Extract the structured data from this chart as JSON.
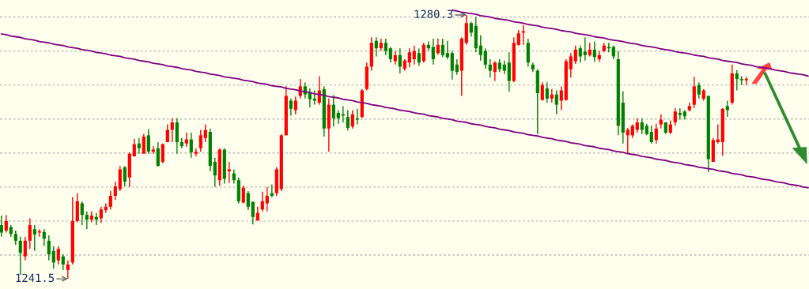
{
  "chart_data": {
    "type": "candlestick",
    "categories": [
      null,
      null,
      null,
      null,
      null,
      null,
      null,
      null,
      null,
      null,
      null,
      null,
      null,
      null,
      null,
      null,
      null,
      null,
      null,
      null,
      null,
      null,
      null,
      null,
      null,
      null,
      null,
      null,
      null,
      null,
      null,
      null,
      null,
      null,
      null,
      null,
      null,
      null,
      null,
      null,
      null,
      null,
      null,
      null,
      null,
      null,
      null,
      null,
      null,
      null,
      null,
      null,
      null,
      null,
      null,
      null,
      null,
      null,
      null,
      null,
      null,
      null,
      null,
      null,
      null,
      null,
      null,
      null,
      null,
      null,
      null,
      null,
      null,
      null,
      null,
      null,
      null,
      null,
      null,
      null,
      null,
      null,
      null,
      null,
      null,
      null,
      null,
      null,
      null,
      null,
      null,
      null,
      null,
      null,
      null,
      null,
      null,
      null,
      null,
      null,
      null,
      null,
      null,
      null,
      null,
      null,
      null,
      null,
      null,
      null,
      null,
      null,
      null,
      null,
      null,
      null,
      null,
      null,
      null,
      null,
      null,
      null,
      null,
      null,
      null,
      null,
      null,
      null,
      null,
      null,
      null,
      null,
      null,
      null,
      null,
      null,
      null,
      null,
      null,
      null,
      null,
      null,
      null,
      null,
      null,
      null,
      null,
      null,
      null,
      null,
      null,
      null,
      null,
      null,
      null,
      null,
      null,
      null,
      null,
      null,
      null,
      null,
      null,
      null,
      null,
      null,
      null,
      null,
      null,
      null,
      null
    ],
    "ohlc": [
      [
        1249.4,
        1250.8,
        1247.7,
        1248.3
      ],
      [
        1248.6,
        1250.9,
        1248.3,
        1250.0
      ],
      [
        1249.1,
        1249.4,
        1247.7,
        1248.1
      ],
      [
        1248.1,
        1248.6,
        1246.5,
        1247.1
      ],
      [
        1247.1,
        1247.7,
        1242.1,
        1245.3
      ],
      [
        1244.8,
        1247.7,
        1244.2,
        1247.1
      ],
      [
        1247.1,
        1250.4,
        1245.9,
        1249.4
      ],
      [
        1248.8,
        1249.4,
        1245.6,
        1248.0
      ],
      [
        1248.3,
        1248.8,
        1247.7,
        1248.5
      ],
      [
        1248.4,
        1248.8,
        1246.3,
        1247.4
      ],
      [
        1247.1,
        1247.9,
        1244.2,
        1245.1
      ],
      [
        1245.6,
        1246.3,
        1243.0,
        1243.9
      ],
      [
        1244.2,
        1246.3,
        1243.6,
        1245.9
      ],
      [
        1244.8,
        1245.1,
        1242.8,
        1243.6
      ],
      [
        1242.8,
        1244.2,
        1241.5,
        1243.6
      ],
      [
        1243.9,
        1253.5,
        1243.6,
        1250.0
      ],
      [
        1250.0,
        1254.1,
        1249.8,
        1252.9
      ],
      [
        1252.6,
        1252.9,
        1249.4,
        1250.9
      ],
      [
        1250.9,
        1251.4,
        1248.8,
        1250.2
      ],
      [
        1250.2,
        1251.4,
        1249.8,
        1250.8
      ],
      [
        1250.6,
        1251.2,
        1249.4,
        1250.2
      ],
      [
        1250.4,
        1252.1,
        1249.7,
        1251.7
      ],
      [
        1251.6,
        1252.6,
        1251.2,
        1252.1
      ],
      [
        1252.1,
        1254.4,
        1251.7,
        1253.7
      ],
      [
        1253.7,
        1255.8,
        1253.1,
        1255.1
      ],
      [
        1254.7,
        1258.1,
        1254.4,
        1257.6
      ],
      [
        1257.9,
        1258.1,
        1255.1,
        1255.8
      ],
      [
        1256.4,
        1260.1,
        1255.0,
        1259.9
      ],
      [
        1259.5,
        1262.1,
        1259.5,
        1261.3
      ],
      [
        1261.4,
        1262.2,
        1259.9,
        1260.7
      ],
      [
        1259.9,
        1262.8,
        1259.9,
        1262.4
      ],
      [
        1262.6,
        1263.5,
        1259.9,
        1260.2
      ],
      [
        1260.2,
        1261.0,
        1259.9,
        1260.5
      ],
      [
        1260.7,
        1261.6,
        1258.0,
        1258.1
      ],
      [
        1258.7,
        1261.4,
        1258.5,
        1261.3
      ],
      [
        1261.6,
        1264.2,
        1261.6,
        1263.4
      ],
      [
        1263.4,
        1265.1,
        1261.6,
        1264.5
      ],
      [
        1264.5,
        1265.1,
        1259.9,
        1261.6
      ],
      [
        1261.6,
        1262.2,
        1260.7,
        1261.0
      ],
      [
        1261.4,
        1263.0,
        1260.9,
        1262.0
      ],
      [
        1262.0,
        1263.0,
        1259.3,
        1260.1
      ],
      [
        1259.9,
        1260.7,
        1259.5,
        1260.2
      ],
      [
        1260.7,
        1263.4,
        1260.2,
        1262.6
      ],
      [
        1262.2,
        1264.2,
        1261.6,
        1263.4
      ],
      [
        1263.1,
        1263.6,
        1257.3,
        1258.1
      ],
      [
        1258.7,
        1259.3,
        1255.0,
        1256.7
      ],
      [
        1256.0,
        1260.7,
        1255.2,
        1260.5
      ],
      [
        1260.5,
        1260.7,
        1255.5,
        1256.2
      ],
      [
        1257.3,
        1258.7,
        1255.6,
        1257.6
      ],
      [
        1257.0,
        1257.6,
        1255.5,
        1256.0
      ],
      [
        1256.0,
        1256.4,
        1252.6,
        1252.9
      ],
      [
        1252.7,
        1255.2,
        1252.6,
        1254.9
      ],
      [
        1254.1,
        1254.4,
        1251.6,
        1252.1
      ],
      [
        1252.8,
        1252.9,
        1249.5,
        1250.6
      ],
      [
        1250.1,
        1252.1,
        1250.0,
        1251.2
      ],
      [
        1251.7,
        1254.3,
        1251.4,
        1252.9
      ],
      [
        1252.6,
        1255.0,
        1251.4,
        1253.7
      ],
      [
        1254.1,
        1255.4,
        1253.5,
        1253.7
      ],
      [
        1254.1,
        1257.9,
        1253.7,
        1257.6
      ],
      [
        1254.7,
        1262.8,
        1254.4,
        1262.6
      ],
      [
        1262.6,
        1269.8,
        1262.6,
        1268.4
      ],
      [
        1267.7,
        1268.0,
        1265.5,
        1266.5
      ],
      [
        1266.3,
        1268.3,
        1265.7,
        1267.7
      ],
      [
        1268.4,
        1270.9,
        1268.0,
        1269.8
      ],
      [
        1269.8,
        1270.4,
        1268.0,
        1268.6
      ],
      [
        1268.8,
        1269.5,
        1266.7,
        1267.9
      ],
      [
        1268.0,
        1269.2,
        1267.1,
        1267.7
      ],
      [
        1267.4,
        1271.3,
        1267.1,
        1269.2
      ],
      [
        1269.4,
        1269.8,
        1262.4,
        1263.6
      ],
      [
        1263.6,
        1268.0,
        1260.2,
        1267.1
      ],
      [
        1267.1,
        1268.5,
        1263.9,
        1265.1
      ],
      [
        1265.9,
        1266.3,
        1264.3,
        1265.1
      ],
      [
        1265.7,
        1266.9,
        1264.5,
        1265.5
      ],
      [
        1265.3,
        1266.3,
        1263.3,
        1263.7
      ],
      [
        1263.9,
        1266.3,
        1263.6,
        1265.7
      ],
      [
        1265.1,
        1266.5,
        1264.2,
        1264.9
      ],
      [
        1265.3,
        1269.4,
        1265.1,
        1269.2
      ],
      [
        1269.4,
        1273.3,
        1269.2,
        1272.7
      ],
      [
        1272.7,
        1277.0,
        1272.1,
        1276.2
      ],
      [
        1276.5,
        1277.0,
        1274.2,
        1275.4
      ],
      [
        1275.4,
        1276.8,
        1275.0,
        1276.2
      ],
      [
        1276.2,
        1276.8,
        1274.4,
        1275.0
      ],
      [
        1275.4,
        1275.6,
        1273.3,
        1273.8
      ],
      [
        1273.5,
        1275.0,
        1273.0,
        1274.4
      ],
      [
        1274.4,
        1275.4,
        1271.7,
        1272.7
      ],
      [
        1272.4,
        1273.8,
        1272.1,
        1273.6
      ],
      [
        1273.3,
        1275.4,
        1272.6,
        1274.8
      ],
      [
        1273.8,
        1275.8,
        1273.0,
        1275.0
      ],
      [
        1274.7,
        1275.4,
        1272.8,
        1273.3
      ],
      [
        1273.5,
        1276.2,
        1273.3,
        1275.9
      ],
      [
        1275.9,
        1276.4,
        1275.0,
        1275.4
      ],
      [
        1275.6,
        1276.8,
        1273.0,
        1273.8
      ],
      [
        1274.7,
        1276.8,
        1274.4,
        1275.9
      ],
      [
        1275.9,
        1276.8,
        1274.1,
        1274.4
      ],
      [
        1274.7,
        1276.5,
        1273.8,
        1274.1
      ],
      [
        1274.7,
        1275.0,
        1270.8,
        1272.1
      ],
      [
        1273.0,
        1273.8,
        1271.5,
        1271.9
      ],
      [
        1272.1,
        1277.0,
        1268.4,
        1276.8
      ],
      [
        1276.2,
        1280.3,
        1275.9,
        1279.1
      ],
      [
        1279.1,
        1279.3,
        1277.1,
        1277.7
      ],
      [
        1278.7,
        1280.0,
        1274.8,
        1275.4
      ],
      [
        1275.8,
        1277.3,
        1273.6,
        1274.4
      ],
      [
        1275.0,
        1275.4,
        1272.4,
        1273.0
      ],
      [
        1273.0,
        1273.8,
        1271.1,
        1272.1
      ],
      [
        1271.9,
        1273.5,
        1270.6,
        1273.3
      ],
      [
        1273.3,
        1273.8,
        1271.9,
        1272.3
      ],
      [
        1273.0,
        1273.6,
        1271.6,
        1272.1
      ],
      [
        1273.3,
        1274.8,
        1269.0,
        1270.6
      ],
      [
        1270.6,
        1277.0,
        1270.4,
        1276.2
      ],
      [
        1275.9,
        1278.1,
        1275.8,
        1277.6
      ],
      [
        1277.7,
        1278.8,
        1275.9,
        1277.9
      ],
      [
        1276.2,
        1276.8,
        1272.7,
        1273.3
      ],
      [
        1273.0,
        1273.3,
        1271.9,
        1272.3
      ],
      [
        1272.1,
        1272.3,
        1262.8,
        1268.8
      ],
      [
        1267.8,
        1270.4,
        1267.7,
        1270.0
      ],
      [
        1269.5,
        1270.4,
        1267.4,
        1268.0
      ],
      [
        1268.0,
        1269.4,
        1267.4,
        1268.6
      ],
      [
        1268.6,
        1269.2,
        1265.7,
        1267.1
      ],
      [
        1267.7,
        1269.8,
        1266.3,
        1269.2
      ],
      [
        1267.8,
        1273.8,
        1267.7,
        1273.5
      ],
      [
        1272.3,
        1274.7,
        1271.1,
        1274.2
      ],
      [
        1273.5,
        1275.8,
        1273.1,
        1275.2
      ],
      [
        1275.4,
        1275.8,
        1273.3,
        1274.2
      ],
      [
        1274.9,
        1277.0,
        1273.6,
        1274.4
      ],
      [
        1274.4,
        1276.2,
        1274.2,
        1275.2
      ],
      [
        1275.2,
        1276.4,
        1273.4,
        1274.1
      ],
      [
        1273.8,
        1275.0,
        1273.4,
        1274.4
      ],
      [
        1275.0,
        1276.2,
        1274.8,
        1275.8
      ],
      [
        1275.6,
        1276.2,
        1274.8,
        1275.4
      ],
      [
        1275.6,
        1275.8,
        1273.8,
        1274.2
      ],
      [
        1273.8,
        1275.0,
        1262.6,
        1264.0
      ],
      [
        1267.4,
        1269.1,
        1261.4,
        1263.0
      ],
      [
        1262.6,
        1263.7,
        1259.9,
        1263.4
      ],
      [
        1262.6,
        1264.2,
        1262.2,
        1264.0
      ],
      [
        1263.4,
        1265.1,
        1263.0,
        1264.5
      ],
      [
        1264.5,
        1265.1,
        1262.8,
        1263.4
      ],
      [
        1264.0,
        1264.3,
        1262.6,
        1262.8
      ],
      [
        1263.1,
        1264.0,
        1261.4,
        1261.6
      ],
      [
        1261.9,
        1264.3,
        1261.4,
        1263.6
      ],
      [
        1264.2,
        1265.7,
        1263.6,
        1264.9
      ],
      [
        1264.5,
        1264.5,
        1262.8,
        1263.0
      ],
      [
        1263.0,
        1264.8,
        1262.8,
        1264.2
      ],
      [
        1264.5,
        1266.6,
        1264.0,
        1266.1
      ],
      [
        1265.9,
        1266.6,
        1264.9,
        1265.6
      ],
      [
        1266.1,
        1266.3,
        1264.9,
        1265.4
      ],
      [
        1266.3,
        1267.4,
        1266.1,
        1266.9
      ],
      [
        1267.1,
        1271.2,
        1266.6,
        1269.8
      ],
      [
        1270.0,
        1270.4,
        1268.0,
        1268.6
      ],
      [
        1268.0,
        1269.4,
        1267.7,
        1269.2
      ],
      [
        1268.4,
        1268.4,
        1257.2,
        1259.1
      ],
      [
        1258.7,
        1262.2,
        1258.7,
        1261.9
      ],
      [
        1261.6,
        1264.2,
        1261.4,
        1262.0
      ],
      [
        1261.6,
        1266.6,
        1259.6,
        1266.5
      ],
      [
        1266.9,
        1267.7,
        1265.3,
        1266.3
      ],
      [
        1267.4,
        1273.0,
        1267.1,
        1271.7
      ],
      [
        1271.7,
        1272.2,
        1269.2,
        1270.9
      ],
      [
        1270.9,
        1271.3,
        1270.0,
        1270.7
      ],
      [
        1270.7,
        1271.2,
        1270.0,
        1270.9
      ],
      null,
      null,
      null,
      null,
      null,
      null,
      null,
      null,
      null,
      null,
      null,
      null,
      null
    ],
    "colors": [
      "#008000",
      "#ff0000",
      "#008000",
      "#008000",
      "#008000",
      "#ff0000",
      "#ff0000",
      "#008000",
      "#ff0000",
      "#008000",
      "#008000",
      "#008000",
      "#ff0000",
      "#008000",
      "#ff0000",
      "#ff0000",
      "#ff0000",
      "#008000",
      "#008000",
      "#ff0000",
      "#008000",
      "#ff0000",
      "#ff0000",
      "#ff0000",
      "#ff0000",
      "#ff0000",
      "#008000",
      "#ff0000",
      "#ff0000",
      "#008000",
      "#ff0000",
      "#008000",
      "#ff0000",
      "#008000",
      "#ff0000",
      "#ff0000",
      "#ff0000",
      "#008000",
      "#008000",
      "#ff0000",
      "#008000",
      "#ff0000",
      "#ff0000",
      "#ff0000",
      "#008000",
      "#008000",
      "#ff0000",
      "#008000",
      "#ff0000",
      "#008000",
      "#008000",
      "#ff0000",
      "#008000",
      "#008000",
      "#ff0000",
      "#ff0000",
      "#ff0000",
      "#008000",
      "#ff0000",
      "#ff0000",
      "#ff0000",
      "#008000",
      "#ff0000",
      "#ff0000",
      "#008000",
      "#008000",
      "#008000",
      "#ff0000",
      "#008000",
      "#ff0000",
      "#008000",
      "#008000",
      "#008000",
      "#008000",
      "#ff0000",
      "#008000",
      "#ff0000",
      "#ff0000",
      "#ff0000",
      "#008000",
      "#ff0000",
      "#008000",
      "#008000",
      "#ff0000",
      "#008000",
      "#ff0000",
      "#ff0000",
      "#ff0000",
      "#008000",
      "#ff0000",
      "#008000",
      "#008000",
      "#ff0000",
      "#008000",
      "#008000",
      "#008000",
      "#008000",
      "#ff0000",
      "#ff0000",
      "#008000",
      "#008000",
      "#008000",
      "#008000",
      "#008000",
      "#ff0000",
      "#008000",
      "#008000",
      "#008000",
      "#ff0000",
      "#ff0000",
      "#ff0000",
      "#008000",
      "#008000",
      "#008000",
      "#ff0000",
      "#008000",
      "#ff0000",
      "#008000",
      "#ff0000",
      "#ff0000",
      "#ff0000",
      "#ff0000",
      "#008000",
      "#008000",
      "#ff0000",
      "#008000",
      "#ff0000",
      "#ff0000",
      "#008000",
      "#008000",
      "#008000",
      "#008000",
      "#ff0000",
      "#ff0000",
      "#ff0000",
      "#008000",
      "#008000",
      "#008000",
      "#ff0000",
      "#ff0000",
      "#008000",
      "#ff0000",
      "#ff0000",
      "#008000",
      "#008000",
      "#ff0000",
      "#ff0000",
      "#008000",
      "#ff0000",
      "#008000",
      "#ff0000",
      "#ff0000",
      "#ff0000",
      "#008000",
      "#ff0000",
      "#008000",
      "#008000",
      "#ff0000",
      null,
      null,
      null,
      null,
      null,
      null,
      null,
      null,
      null,
      null,
      null,
      null,
      null
    ],
    "series": [
      {
        "type": "line",
        "color": "#800080",
        "values": [
          null,
          null,
          null,
          null,
          null,
          null,
          null,
          null,
          null,
          null,
          null,
          null,
          null,
          null,
          null,
          null,
          null,
          null,
          null,
          null,
          null,
          null,
          null,
          null,
          null,
          null,
          null,
          null,
          null,
          null,
          null,
          null,
          null,
          null,
          null,
          null,
          null,
          null,
          null,
          null,
          null,
          null,
          null,
          null,
          null,
          null,
          null,
          null,
          null,
          null,
          null,
          null,
          null,
          null,
          null,
          null,
          null,
          null,
          null,
          null,
          null,
          null,
          null,
          null,
          null,
          null,
          null,
          null,
          null,
          null,
          null,
          null,
          null,
          null,
          null,
          null,
          null,
          null,
          null,
          null,
          null,
          null,
          null,
          null,
          null,
          null,
          null,
          null,
          null,
          null,
          null,
          null,
          null,
          null,
          null,
          1281.0,
          1280.9,
          1280.7,
          1280.6,
          1280.5,
          1280.4,
          1280.2,
          1280.1,
          1280.0,
          1279.8,
          1279.7,
          1279.6,
          1279.5,
          1279.3,
          1279.2,
          1279.1,
          1278.9,
          1278.8,
          1278.7,
          1278.5,
          1278.4,
          1278.3,
          1278.2,
          1278.0,
          1277.9,
          1277.8,
          1277.6,
          1277.5,
          1277.4,
          1277.3,
          1277.1,
          1277.0,
          1276.9,
          1276.7,
          1276.6,
          1276.5,
          1276.4,
          1276.2,
          1276.1,
          1276.0,
          1275.8,
          1275.7,
          1275.6,
          1275.5,
          1275.3,
          1275.2,
          1275.1,
          1274.9,
          1274.8,
          1274.7,
          1274.6,
          1274.4,
          1274.3,
          1274.2,
          1274.0,
          1273.9,
          1273.8,
          1273.6,
          1273.5,
          1273.4,
          1273.3,
          1273.1,
          1273.0,
          1272.9,
          1272.7,
          1272.6,
          1272.5,
          1272.4,
          1272.2,
          1272.1,
          1272.0,
          1271.8,
          1271.7,
          1271.6,
          1271.5,
          1271.3
        ]
      },
      {
        "type": "line",
        "color": "#800080",
        "values": [
          1277.5,
          1277.4,
          1277.2,
          1277.1,
          1277.0,
          1276.8,
          1276.7,
          1276.6,
          1276.4,
          1276.3,
          1276.2,
          1276.0,
          1275.9,
          1275.8,
          1275.6,
          1275.5,
          1275.4,
          1275.2,
          1275.1,
          1275.0,
          1274.8,
          1274.7,
          1274.6,
          1274.4,
          1274.3,
          1274.2,
          1274.0,
          1273.9,
          1273.8,
          1273.6,
          1273.5,
          1273.4,
          1273.2,
          1273.1,
          1273.0,
          1272.8,
          1272.7,
          1272.6,
          1272.4,
          1272.3,
          1272.2,
          1272.0,
          1271.9,
          1271.8,
          1271.6,
          1271.5,
          1271.4,
          1271.2,
          1271.1,
          1271.0,
          1270.9,
          1270.7,
          1270.6,
          1270.5,
          1270.3,
          1270.2,
          1270.1,
          1269.9,
          1269.8,
          1269.7,
          1269.5,
          1269.4,
          1269.3,
          1269.1,
          1269.0,
          1268.9,
          1268.7,
          1268.6,
          1268.5,
          1268.3,
          1268.2,
          1268.1,
          1267.9,
          1267.8,
          1267.7,
          1267.5,
          1267.4,
          1267.3,
          1267.1,
          1267.0,
          1266.9,
          1266.7,
          1266.6,
          1266.5,
          1266.3,
          1266.2,
          1266.1,
          1265.9,
          1265.8,
          1265.7,
          1265.5,
          1265.4,
          1265.3,
          1265.1,
          1265.0,
          1264.9,
          1264.7,
          1264.6,
          1264.5,
          1264.3,
          1264.2,
          1264.1,
          1263.9,
          1263.8,
          1263.7,
          1263.5,
          1263.4,
          1263.3,
          1263.1,
          1263.0,
          1262.9,
          1262.7,
          1262.6,
          1262.5,
          1262.3,
          1262.2,
          1262.1,
          1261.9,
          1261.8,
          1261.7,
          1261.5,
          1261.4,
          1261.3,
          1261.1,
          1261.0,
          1260.9,
          1260.7,
          1260.6,
          1260.5,
          1260.3,
          1260.2,
          1260.1,
          1259.9,
          1259.8,
          1259.7,
          1259.5,
          1259.4,
          1259.3,
          1259.1,
          1259.0,
          1258.9,
          1258.7,
          1258.6,
          1258.5,
          1258.3,
          1258.2,
          1258.1,
          1257.9,
          1257.8,
          1257.7,
          1257.6,
          1257.4,
          1257.3,
          1257.2,
          1257.0,
          1256.9,
          1256.8,
          1256.6,
          1256.5,
          1256.4,
          1256.2,
          1256.1,
          1256.0,
          1255.8,
          1255.7,
          1255.6,
          1255.4,
          1255.3,
          1255.2,
          1255.0,
          1254.9
        ]
      }
    ],
    "annotations": [
      "1280.3",
      "1241.5"
    ],
    "ylim": [
      1240,
      1282.5
    ],
    "yticks": [
      {
        "value": 1245,
        "label": null
      },
      {
        "value": 1250,
        "label": null
      },
      {
        "value": 1255,
        "label": null
      },
      {
        "value": 1260,
        "label": null
      },
      {
        "value": 1265,
        "label": null
      },
      {
        "value": 1270,
        "label": null
      },
      {
        "value": 1275,
        "label": null
      },
      {
        "value": 1280,
        "label": null
      }
    ],
    "grid": "y"
  }
}
